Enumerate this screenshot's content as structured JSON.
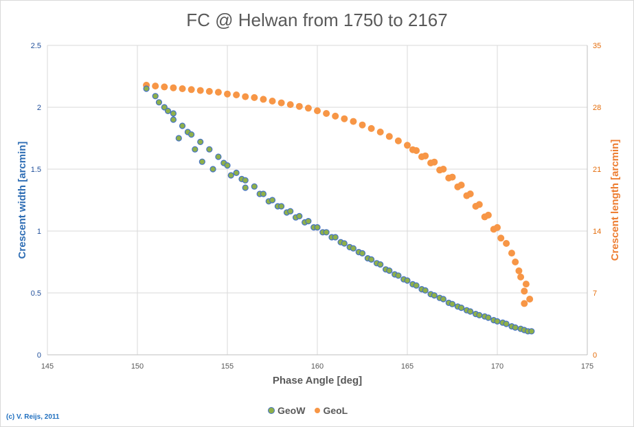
{
  "chart_data": {
    "type": "scatter",
    "title": "FC @ Helwan from 1750 to 2167",
    "xlabel": "Phase Angle [deg]",
    "ylabel": "Crescent width [arcmin]",
    "y2label": "Crescent length [arcmin]",
    "xlim": [
      145,
      175
    ],
    "ylim": [
      0,
      2.5
    ],
    "y2lim": [
      0,
      35
    ],
    "xticks": [
      145,
      150,
      155,
      160,
      165,
      170,
      175
    ],
    "yticks": [
      0,
      0.5,
      1,
      1.5,
      2,
      2.5
    ],
    "y2ticks": [
      0,
      7,
      14,
      21,
      28,
      35
    ],
    "grid": true,
    "legend": "bottom",
    "colors": {
      "GeoW_fill": "#8fb04a",
      "GeoW_edge": "#4472c4",
      "GeoL": "#f79646",
      "left_axis": "#1f4e9a",
      "right_axis": "#e46c0a"
    },
    "series": [
      {
        "name": "GeoW",
        "axis": "left",
        "x": [
          150.5,
          151,
          151.2,
          151.5,
          151.7,
          152,
          152,
          152.3,
          152.5,
          152.8,
          153,
          153.2,
          153.5,
          153.6,
          154,
          154.2,
          154.5,
          154.8,
          155,
          155.2,
          155.5,
          155.8,
          156,
          156,
          156.5,
          156.8,
          157,
          157.3,
          157.5,
          157.8,
          158,
          158.3,
          158.5,
          158.8,
          159,
          159.3,
          159.5,
          159.8,
          160,
          160.3,
          160.5,
          160.8,
          161,
          161.3,
          161.5,
          161.8,
          162,
          162.3,
          162.5,
          162.8,
          163,
          163.3,
          163.5,
          163.8,
          164,
          164.3,
          164.5,
          164.8,
          165,
          165.3,
          165.5,
          165.8,
          166,
          166.3,
          166.5,
          166.8,
          167,
          167.3,
          167.5,
          167.8,
          168,
          168.3,
          168.5,
          168.8,
          169,
          169.3,
          169.5,
          169.8,
          170,
          170.3,
          170.5,
          170.8,
          171,
          171.3,
          171.5,
          171.7,
          171.9
        ],
        "y": [
          2.15,
          2.09,
          2.04,
          2.0,
          1.97,
          1.9,
          1.95,
          1.75,
          1.85,
          1.8,
          1.78,
          1.66,
          1.72,
          1.56,
          1.66,
          1.5,
          1.6,
          1.55,
          1.53,
          1.45,
          1.47,
          1.42,
          1.41,
          1.35,
          1.36,
          1.3,
          1.3,
          1.24,
          1.25,
          1.2,
          1.2,
          1.15,
          1.16,
          1.11,
          1.12,
          1.07,
          1.08,
          1.03,
          1.03,
          0.99,
          0.99,
          0.95,
          0.95,
          0.91,
          0.9,
          0.87,
          0.86,
          0.83,
          0.82,
          0.78,
          0.77,
          0.74,
          0.73,
          0.69,
          0.68,
          0.65,
          0.64,
          0.61,
          0.6,
          0.57,
          0.56,
          0.53,
          0.52,
          0.49,
          0.48,
          0.46,
          0.45,
          0.42,
          0.41,
          0.39,
          0.38,
          0.36,
          0.35,
          0.33,
          0.32,
          0.31,
          0.3,
          0.28,
          0.27,
          0.26,
          0.25,
          0.23,
          0.22,
          0.21,
          0.2,
          0.19,
          0.19
        ]
      },
      {
        "name": "GeoL",
        "axis": "right",
        "x": [
          150.5,
          151,
          151.5,
          152,
          152.5,
          153,
          153.5,
          154,
          154.5,
          155,
          155.5,
          156,
          156.5,
          157,
          157.5,
          158,
          158.5,
          159,
          159.5,
          160,
          160.5,
          161,
          161.5,
          162,
          162.5,
          163,
          163.5,
          164,
          164.5,
          165,
          165.3,
          165.5,
          165.8,
          166,
          166.3,
          166.5,
          166.8,
          167,
          167.3,
          167.5,
          167.8,
          168,
          168.3,
          168.5,
          168.8,
          169,
          169.3,
          169.5,
          169.8,
          170,
          170.2,
          170.5,
          170.8,
          171,
          171.2,
          171.3,
          171.5,
          171.6,
          171.8,
          171.5
        ],
        "y": [
          30.5,
          30.4,
          30.3,
          30.2,
          30.1,
          30.0,
          29.9,
          29.8,
          29.7,
          29.5,
          29.4,
          29.2,
          29.1,
          28.9,
          28.7,
          28.5,
          28.3,
          28.1,
          27.9,
          27.6,
          27.3,
          27.0,
          26.7,
          26.4,
          26.0,
          25.6,
          25.2,
          24.7,
          24.2,
          23.7,
          23.2,
          23.1,
          22.4,
          22.5,
          21.7,
          21.8,
          20.9,
          21.0,
          20.0,
          20.1,
          19.0,
          19.2,
          18.0,
          18.2,
          16.8,
          17.0,
          15.6,
          15.8,
          14.2,
          14.4,
          13.2,
          12.6,
          11.5,
          10.5,
          9.5,
          8.8,
          7.2,
          8.0,
          6.3,
          5.8
        ]
      }
    ]
  },
  "footer": {
    "copyright": "(c) V. Reijs,  2011"
  }
}
